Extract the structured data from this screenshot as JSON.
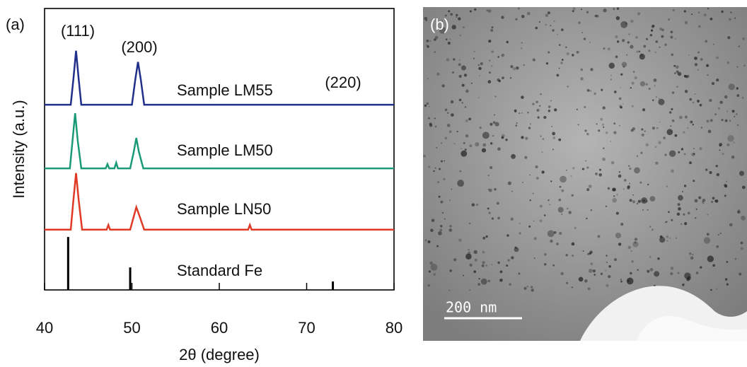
{
  "chart_data": {
    "type": "line",
    "panel_label": "(a)",
    "x_label": "2θ (degree)",
    "y_label": "Intensity (a.u.)",
    "xlim": [
      40,
      80
    ],
    "xticks": [
      40,
      50,
      60,
      70,
      80
    ],
    "ylim": [
      0,
      100
    ],
    "annotations": [
      "(111)",
      "(200)",
      "(220)"
    ],
    "series": [
      {
        "name": "Sample LM55",
        "color": "#1f2f8a",
        "x": [
          40,
          43.0,
          43.3,
          43.6,
          43.9,
          44.2,
          50.0,
          50.4,
          50.7,
          51.0,
          51.4,
          80
        ],
        "values": [
          65.8,
          65.8,
          75,
          85,
          75,
          65.8,
          65.8,
          75,
          81,
          75,
          65.8,
          65.8
        ]
      },
      {
        "name": "Sample LM50",
        "color": "#1b9a78",
        "x": [
          40,
          42.9,
          43.2,
          43.5,
          43.8,
          44.2,
          47.0,
          47.2,
          47.4,
          48.0,
          48.2,
          48.4,
          49.8,
          50.2,
          50.5,
          50.8,
          51.3,
          80
        ],
        "values": [
          43.2,
          43.2,
          53,
          62.8,
          53,
          43.2,
          43.2,
          44.7,
          43.2,
          43.2,
          45.2,
          43.2,
          43.2,
          49,
          54,
          49,
          43.2,
          43.2
        ]
      },
      {
        "name": "Sample LN50",
        "color": "#e03a26",
        "x": [
          40,
          43.0,
          43.3,
          43.6,
          43.9,
          44.3,
          47.1,
          47.3,
          47.5,
          49.8,
          50.2,
          50.5,
          50.9,
          51.4,
          63.3,
          63.5,
          63.7,
          80
        ],
        "values": [
          21.4,
          21.4,
          32,
          41.5,
          32,
          21.4,
          21.4,
          23.1,
          21.4,
          21.4,
          26,
          29.4,
          26,
          21.4,
          21.4,
          23.1,
          21.4,
          21.4
        ]
      },
      {
        "name": "Standard Fe",
        "color": "#000000",
        "style": "stick",
        "x": [
          42.7,
          49.8,
          73.0
        ],
        "values": [
          18.8,
          8,
          3
        ]
      }
    ]
  },
  "image_panel": {
    "panel_label": "(b)",
    "scale_bar": "200 nm"
  }
}
